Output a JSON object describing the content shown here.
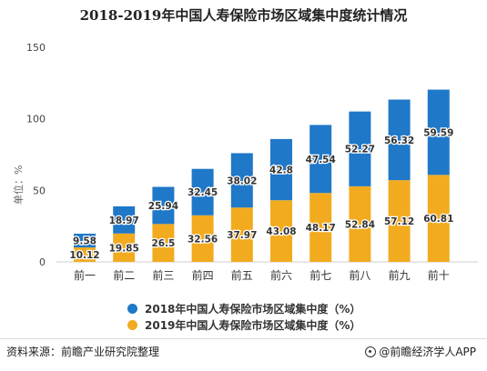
{
  "title": "2018-2019年中国人寿保险市场区域集中度统计情况",
  "source": "资料来源：前瞻产业研究院整理",
  "credit": "@前瞻经济学人APP",
  "colors": {
    "series_2018": "#1f78c8",
    "series_2019": "#f2ab1f",
    "axis": "#cfcfcf",
    "text": "#333333"
  },
  "chart_data": {
    "type": "bar",
    "stacked": true,
    "categories": [
      "前一",
      "前二",
      "前三",
      "前四",
      "前五",
      "前六",
      "前七",
      "前八",
      "前九",
      "前十"
    ],
    "series": [
      {
        "name": "2019年中国人寿保险市场区域集中度（%）",
        "values": [
          10.12,
          19.85,
          26.5,
          32.56,
          37.97,
          43.08,
          48.17,
          52.84,
          57.12,
          60.81
        ]
      },
      {
        "name": "2018年中国人寿保险市场区域集中度（%）",
        "values": [
          9.58,
          18.97,
          25.94,
          32.45,
          38.02,
          42.8,
          47.54,
          52.27,
          56.32,
          59.59
        ]
      }
    ],
    "ylabel": "单位：%",
    "ylim": [
      0,
      150
    ],
    "yticks": [
      0,
      50,
      100,
      150
    ],
    "grid": false,
    "legend_position": "bottom"
  }
}
